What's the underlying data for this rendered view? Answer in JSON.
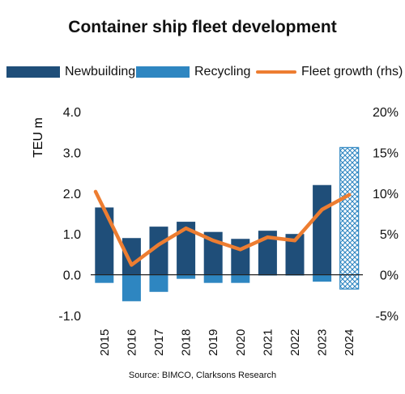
{
  "chart_data": {
    "type": "bar",
    "title": "Container ship fleet development",
    "ylabel": "TEU m",
    "y2label": "",
    "ylim": [
      -1.0,
      4.0
    ],
    "y2lim": [
      -0.05,
      0.2
    ],
    "y_ticks": [
      "-1.0",
      "0.0",
      "1.0",
      "2.0",
      "3.0",
      "4.0"
    ],
    "y2_ticks": [
      "-5%",
      "0%",
      "5%",
      "10%",
      "15%",
      "20%"
    ],
    "categories": [
      "2015",
      "2016",
      "2017",
      "2018",
      "2019",
      "2020",
      "2021",
      "2022",
      "2023",
      "2024"
    ],
    "series": [
      {
        "name": "Newbuilding",
        "type": "bar",
        "color": "#1F4E79",
        "values": [
          1.65,
          0.9,
          1.18,
          1.3,
          1.05,
          0.88,
          1.08,
          1.0,
          2.2,
          3.12
        ]
      },
      {
        "name": "Recycling",
        "type": "bar",
        "color": "#2E86C1",
        "values": [
          -0.2,
          -0.65,
          -0.42,
          -0.1,
          -0.2,
          -0.2,
          -0.02,
          -0.02,
          -0.17,
          -0.35
        ]
      },
      {
        "name": "Fleet growth (rhs)",
        "type": "line",
        "axis": "right",
        "color": "#ED7D31",
        "values": [
          0.08,
          0.012,
          0.037,
          0.057,
          0.042,
          0.031,
          0.046,
          0.042,
          0.08,
          0.098
        ]
      }
    ],
    "forecast_category": "2024",
    "legend_position": "top",
    "grid": false
  },
  "source": "Source: BIMCO, Clarksons Research"
}
